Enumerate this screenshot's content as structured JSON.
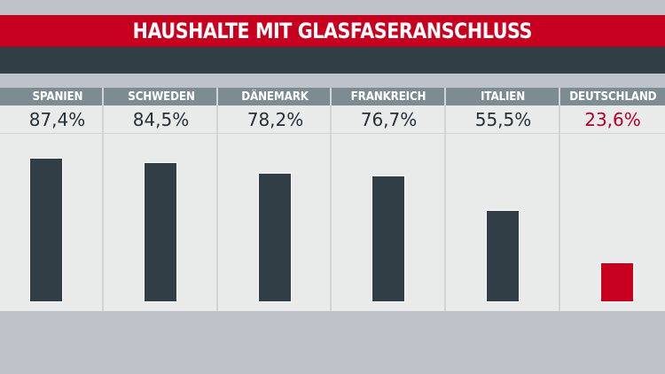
{
  "title": "HAUSHALTE MIT GLASFASERANSCHLUSS",
  "colors": {
    "title_bg": "#c8001f",
    "dark_band": "#323e46",
    "bar_default": "#323e46",
    "bar_highlight": "#c8001f",
    "value_highlight": "#b3002a",
    "header_bg": "#7d8b92",
    "panel_bg": "#e9ebea",
    "page_bg": "#bec3ca"
  },
  "columns": [
    {
      "label": "SPANIEN",
      "value_text": "87,4%",
      "value": 87.4,
      "highlight": false
    },
    {
      "label": "SCHWEDEN",
      "value_text": "84,5%",
      "value": 84.5,
      "highlight": false
    },
    {
      "label": "DÄNEMARK",
      "value_text": "78,2%",
      "value": 78.2,
      "highlight": false
    },
    {
      "label": "FRANKREICH",
      "value_text": "76,7%",
      "value": 76.7,
      "highlight": false
    },
    {
      "label": "ITALIEN",
      "value_text": "55,5%",
      "value": 55.5,
      "highlight": false
    },
    {
      "label": "DEUTSCHLAND",
      "value_text": "23,6%",
      "value": 23.6,
      "highlight": true
    }
  ],
  "chart_data": {
    "type": "bar",
    "title": "HAUSHALTE MIT GLASFASERANSCHLUSS",
    "categories": [
      "SPANIEN",
      "SCHWEDEN",
      "DÄNEMARK",
      "FRANKREICH",
      "ITALIEN",
      "DEUTSCHLAND"
    ],
    "values": [
      87.4,
      84.5,
      78.2,
      76.7,
      55.5,
      23.6
    ],
    "value_labels": [
      "87,4%",
      "84,5%",
      "78,2%",
      "76,7%",
      "55,5%",
      "23,6%"
    ],
    "unit": "%",
    "highlighted_category": "DEUTSCHLAND",
    "xlabel": "",
    "ylabel": "",
    "ylim": [
      0,
      100
    ],
    "grid": false,
    "legend": "none"
  }
}
